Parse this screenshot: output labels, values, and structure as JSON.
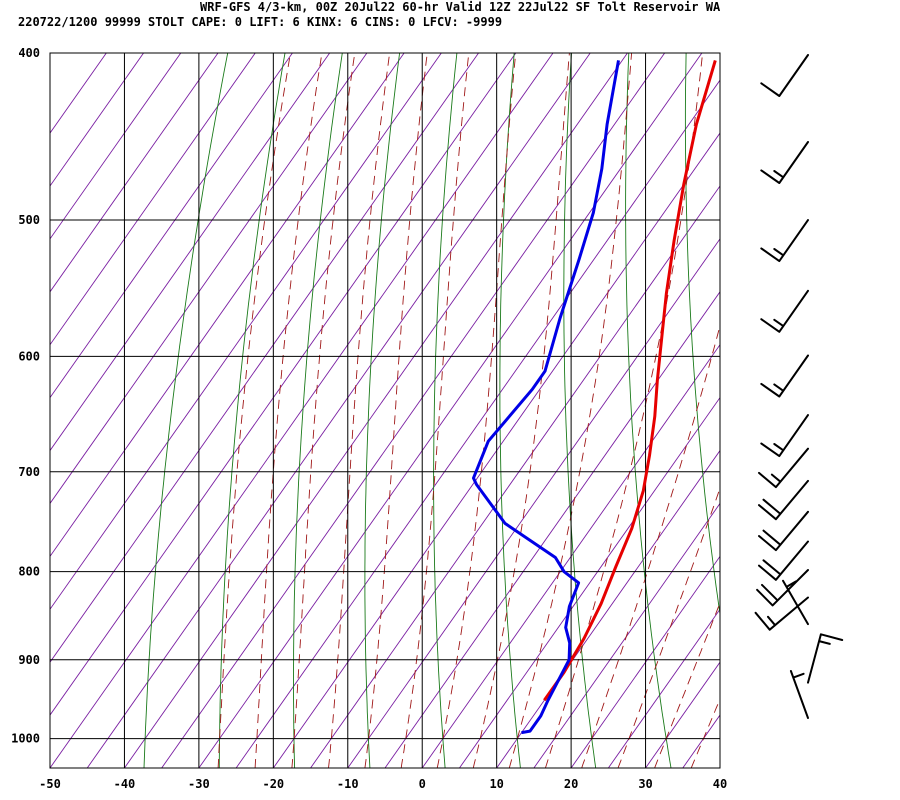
{
  "header": {
    "line1": "WRF-GFS 4/3-km, 00Z 20Jul22 60-hr Valid 12Z 22Jul22 SF Tolt Reservoir WA",
    "line2": "220722/1200 99999  STOLT   CAPE:     0 LIFT:     6 KINX:     6 CINS:     0 LFCV: -9999"
  },
  "chart_data": {
    "type": "line",
    "subtype": "skew-T log-P sounding",
    "x_axis": {
      "range": [
        -50,
        40
      ],
      "ticks": [
        -50,
        -40,
        -30,
        -20,
        -10,
        0,
        10,
        20,
        30,
        40
      ],
      "tick_labels": [
        "-50",
        "-40",
        "-30",
        "-20",
        "-10",
        "0",
        "10",
        "20",
        "30",
        "40"
      ]
    },
    "y_axis": {
      "scale": "log",
      "range": [
        1040,
        400
      ],
      "ticks": [
        400,
        500,
        600,
        700,
        800,
        900,
        1000
      ],
      "tick_labels": [
        "400",
        "500",
        "600",
        "700",
        "800",
        "900",
        "1000"
      ]
    },
    "grid": true,
    "background_lines": {
      "isotherm_color": "#7a1fa2",
      "dry_adiabat_color": "#1a7a1a",
      "moist_adiabat_color": "#a01818"
    },
    "series": [
      {
        "color": "#e60000",
        "x": [
          -27.5,
          -24,
          -20,
          -16,
          -12,
          -8,
          -5,
          -2,
          1,
          3.5,
          5.5,
          7,
          8.5,
          9.5,
          10,
          10
        ],
        "y": [
          404,
          440,
          477,
          514,
          552,
          590,
          620,
          650,
          685,
          718,
          755,
          795,
          835,
          875,
          915,
          950
        ]
      },
      {
        "color": "#0000e6",
        "x": [
          -40.5,
          -36,
          -32.5,
          -29.5,
          -27,
          -24,
          -21,
          -21,
          -22,
          -20.5,
          -19.5,
          -12,
          -2,
          0.5,
          3.5,
          4.5,
          6,
          8,
          9.5,
          10,
          10.5,
          11,
          11,
          10
        ],
        "y": [
          404,
          440,
          467,
          495,
          527,
          570,
          612,
          627,
          672,
          706,
          712,
          750,
          785,
          800,
          812,
          838,
          862,
          880,
          900,
          925,
          950,
          970,
          990,
          992
        ]
      }
    ],
    "wind_barbs": [
      {
        "p": 410,
        "dir": 215,
        "spd": 10
      },
      {
        "p": 460,
        "dir": 215,
        "spd": 15
      },
      {
        "p": 510,
        "dir": 215,
        "spd": 15
      },
      {
        "p": 560,
        "dir": 215,
        "spd": 15
      },
      {
        "p": 610,
        "dir": 215,
        "spd": 15
      },
      {
        "p": 660,
        "dir": 215,
        "spd": 15
      },
      {
        "p": 690,
        "dir": 220,
        "spd": 15
      },
      {
        "p": 720,
        "dir": 220,
        "spd": 20
      },
      {
        "p": 750,
        "dir": 220,
        "spd": 20
      },
      {
        "p": 780,
        "dir": 220,
        "spd": 20
      },
      {
        "p": 810,
        "dir": 225,
        "spd": 20
      },
      {
        "p": 840,
        "dir": 230,
        "spd": 15
      },
      {
        "p": 870,
        "dir": 330,
        "spd": 5
      },
      {
        "p": 940,
        "dir": 15,
        "spd": 15
      },
      {
        "p": 985,
        "dir": 340,
        "spd": 5
      }
    ]
  }
}
